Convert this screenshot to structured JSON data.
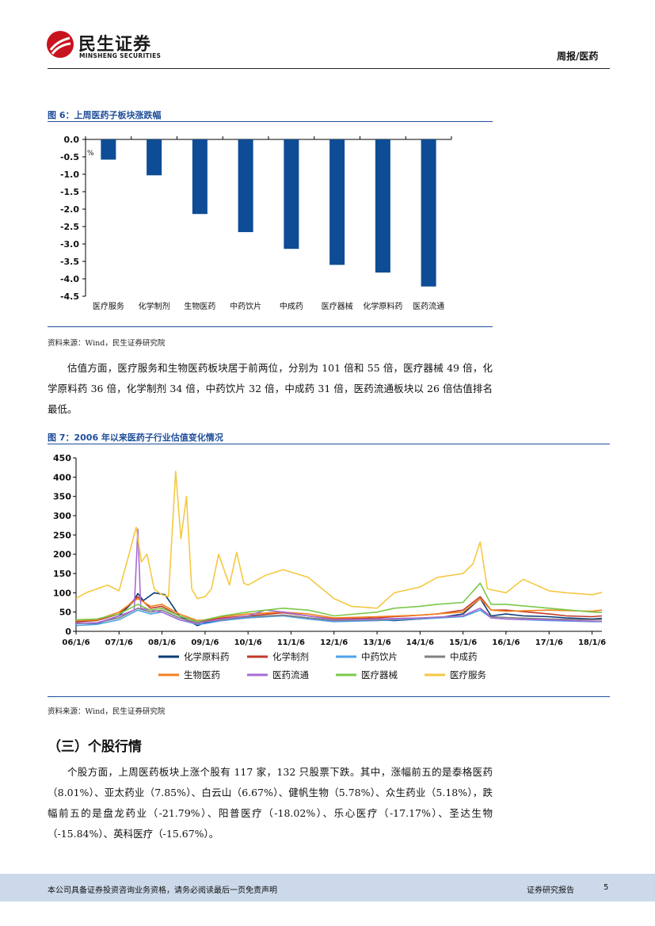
{
  "header": {
    "company_cn": "民生证券",
    "company_en": "MINSHENG SECURITIES",
    "report_type": "周报/医药"
  },
  "figure6": {
    "title": "图 6：上周医药子板块涨跌幅",
    "source": "资料来源：Wind，民生证券研究院"
  },
  "paragraph1": "估值方面，医疗服务和生物医药板块居于前两位，分别为 101 倍和 55 倍，医疗器械 49 倍，化学原料药 36 倍，化学制剂 34 倍，中药饮片 32 倍，中成药 31 倍，医药流通板块以 26 倍估值排名最低。",
  "figure7": {
    "title": "图 7：2006 年以来医药子行业估值变化情况",
    "source": "资料来源：Wind，民生证券研究院"
  },
  "section_heading": "（三）个股行情",
  "paragraph2": "个股方面，上周医药板块上涨个股有 117 家，132 只股票下跌。其中，涨幅前五的是泰格医药（8.01%）、亚太药业（7.85%）、白云山（6.67%）、健帆生物（5.78%）、众生药业（5.18%），跌幅前五的是盘龙药业（-21.79%）、阳普医疗（-18.02%）、乐心医疗（-17.17%）、圣达生物（-15.84%）、英科医疗（-15.67%）。",
  "footer": {
    "disclaimer": "本公司具备证券投资咨询业务资格，请务必阅读最后一页免责声明",
    "label": "证券研究报告",
    "page": "5"
  },
  "colors": {
    "brand_red": "#c8141e",
    "figure_blue": "#1f4e9a",
    "bar_blue": "#0e4c95",
    "footer_bg": "#cbd9ea"
  },
  "chart_data": [
    {
      "type": "bar",
      "unit": "%",
      "categories": [
        "医疗服务",
        "化学制剂",
        "生物医药",
        "中药饮片",
        "中成药",
        "医疗器械",
        "化学原料药",
        "医药流通"
      ],
      "values": [
        -0.58,
        -1.03,
        -2.14,
        -2.66,
        -3.14,
        -3.6,
        -3.82,
        -4.22
      ],
      "ylim": [
        -4.5,
        0.0
      ],
      "yticks": [
        "0.0",
        "-0.5",
        "-1.0",
        "-1.5",
        "-2.0",
        "-2.5",
        "-3.0",
        "-3.5",
        "-4.0",
        "-4.5"
      ],
      "bar_color": "#0e4c95"
    },
    {
      "type": "line",
      "x_start": "2006-01-06",
      "x_end": "2018-03-31",
      "xticks": [
        "06/1/6",
        "07/1/6",
        "08/1/6",
        "09/1/6",
        "10/1/6",
        "11/1/6",
        "12/1/6",
        "13/1/6",
        "14/1/6",
        "15/1/6",
        "16/1/6",
        "17/1/6",
        "18/1/6"
      ],
      "yticks": [
        "0",
        "50",
        "100",
        "150",
        "200",
        "250",
        "300",
        "350",
        "400",
        "450"
      ],
      "ylim": [
        0,
        450
      ],
      "series": [
        {
          "name": "化学原料药",
          "color": "#0b3c78",
          "points": [
            [
              "2006-01-06",
              22
            ],
            [
              "2006-07-01",
              20
            ],
            [
              "2007-01-06",
              40
            ],
            [
              "2007-05-01",
              75
            ],
            [
              "2007-06-15",
              98
            ],
            [
              "2007-08-01",
              80
            ],
            [
              "2007-11-01",
              100
            ],
            [
              "2008-02-01",
              95
            ],
            [
              "2008-06-01",
              40
            ],
            [
              "2008-11-01",
              15
            ],
            [
              "2009-01-06",
              22
            ],
            [
              "2009-06-01",
              30
            ],
            [
              "2010-01-06",
              35
            ],
            [
              "2010-06-01",
              38
            ],
            [
              "2010-11-01",
              42
            ],
            [
              "2011-06-01",
              35
            ],
            [
              "2012-01-06",
              28
            ],
            [
              "2012-06-01",
              30
            ],
            [
              "2013-01-06",
              30
            ],
            [
              "2013-06-01",
              28
            ],
            [
              "2014-01-06",
              32
            ],
            [
              "2014-06-01",
              35
            ],
            [
              "2015-01-06",
              45
            ],
            [
              "2015-06-01",
              85
            ],
            [
              "2015-09-01",
              40
            ],
            [
              "2016-01-06",
              45
            ],
            [
              "2016-06-01",
              40
            ],
            [
              "2017-01-06",
              38
            ],
            [
              "2017-06-01",
              35
            ],
            [
              "2018-01-06",
              32
            ],
            [
              "2018-03-31",
              34
            ]
          ]
        },
        {
          "name": "化学制剂",
          "color": "#c0392b",
          "points": [
            [
              "2006-01-06",
              25
            ],
            [
              "2006-07-01",
              28
            ],
            [
              "2007-01-06",
              45
            ],
            [
              "2007-06-15",
              90
            ],
            [
              "2007-10-01",
              60
            ],
            [
              "2008-01-06",
              65
            ],
            [
              "2008-06-01",
              40
            ],
            [
              "2008-11-01",
              25
            ],
            [
              "2009-01-06",
              28
            ],
            [
              "2009-06-01",
              35
            ],
            [
              "2010-01-06",
              40
            ],
            [
              "2010-11-01",
              48
            ],
            [
              "2011-06-01",
              40
            ],
            [
              "2012-01-06",
              32
            ],
            [
              "2013-01-06",
              35
            ],
            [
              "2013-06-01",
              38
            ],
            [
              "2014-01-06",
              42
            ],
            [
              "2014-06-01",
              45
            ],
            [
              "2015-01-06",
              55
            ],
            [
              "2015-06-01",
              90
            ],
            [
              "2015-09-01",
              55
            ],
            [
              "2016-01-06",
              55
            ],
            [
              "2017-01-06",
              45
            ],
            [
              "2017-06-01",
              40
            ],
            [
              "2018-01-06",
              38
            ],
            [
              "2018-03-31",
              40
            ]
          ]
        },
        {
          "name": "中药饮片",
          "color": "#4da3ea",
          "points": [
            [
              "2006-01-06",
              15
            ],
            [
              "2006-07-01",
              18
            ],
            [
              "2007-01-06",
              30
            ],
            [
              "2007-06-15",
              55
            ],
            [
              "2007-10-01",
              45
            ],
            [
              "2008-01-06",
              50
            ],
            [
              "2008-06-01",
              30
            ],
            [
              "2008-11-01",
              18
            ],
            [
              "2009-01-06",
              20
            ],
            [
              "2009-06-01",
              28
            ],
            [
              "2010-01-06",
              35
            ],
            [
              "2010-11-01",
              40
            ],
            [
              "2011-06-01",
              32
            ],
            [
              "2012-01-06",
              25
            ],
            [
              "2013-01-06",
              28
            ],
            [
              "2014-01-06",
              32
            ],
            [
              "2015-01-06",
              38
            ],
            [
              "2015-06-01",
              55
            ],
            [
              "2015-09-01",
              35
            ],
            [
              "2016-01-06",
              32
            ],
            [
              "2017-01-06",
              28
            ],
            [
              "2018-01-06",
              25
            ],
            [
              "2018-03-31",
              25
            ]
          ]
        },
        {
          "name": "中成药",
          "color": "#808080",
          "points": [
            [
              "2006-01-06",
              20
            ],
            [
              "2006-07-01",
              22
            ],
            [
              "2007-01-06",
              35
            ],
            [
              "2007-06-15",
              60
            ],
            [
              "2007-10-01",
              50
            ],
            [
              "2008-01-06",
              55
            ],
            [
              "2008-06-01",
              35
            ],
            [
              "2008-11-01",
              22
            ],
            [
              "2009-01-06",
              25
            ],
            [
              "2009-06-01",
              30
            ],
            [
              "2010-01-06",
              38
            ],
            [
              "2010-11-01",
              42
            ],
            [
              "2011-06-01",
              35
            ],
            [
              "2012-01-06",
              28
            ],
            [
              "2013-01-06",
              30
            ],
            [
              "2014-01-06",
              34
            ],
            [
              "2015-01-06",
              40
            ],
            [
              "2015-06-01",
              60
            ],
            [
              "2015-09-01",
              38
            ],
            [
              "2016-01-06",
              36
            ],
            [
              "2017-01-06",
              32
            ],
            [
              "2018-01-06",
              30
            ],
            [
              "2018-03-31",
              31
            ]
          ]
        },
        {
          "name": "生物医药",
          "color": "#f0821e",
          "points": [
            [
              "2006-01-06",
              28
            ],
            [
              "2006-07-01",
              30
            ],
            [
              "2007-01-06",
              50
            ],
            [
              "2007-06-15",
              85
            ],
            [
              "2007-10-01",
              65
            ],
            [
              "2008-01-06",
              70
            ],
            [
              "2008-06-01",
              45
            ],
            [
              "2008-11-01",
              28
            ],
            [
              "2009-01-06",
              30
            ],
            [
              "2009-06-01",
              38
            ],
            [
              "2010-01-06",
              45
            ],
            [
              "2010-11-01",
              50
            ],
            [
              "2011-06-01",
              45
            ],
            [
              "2012-01-06",
              35
            ],
            [
              "2013-01-06",
              38
            ],
            [
              "2014-01-06",
              42
            ],
            [
              "2015-01-06",
              50
            ],
            [
              "2015-06-01",
              85
            ],
            [
              "2015-09-01",
              55
            ],
            [
              "2016-01-06",
              52
            ],
            [
              "2017-01-06",
              55
            ],
            [
              "2018-01-06",
              52
            ],
            [
              "2018-03-31",
              55
            ]
          ]
        },
        {
          "name": "医药流通",
          "color": "#a66bd6",
          "points": [
            [
              "2006-01-06",
              22
            ],
            [
              "2006-07-01",
              22
            ],
            [
              "2007-01-06",
              40
            ],
            [
              "2007-05-15",
              55
            ],
            [
              "2007-06-15",
              265
            ],
            [
              "2007-07-10",
              60
            ],
            [
              "2007-10-01",
              55
            ],
            [
              "2008-01-06",
              50
            ],
            [
              "2008-06-01",
              30
            ],
            [
              "2008-11-01",
              20
            ],
            [
              "2009-01-06",
              25
            ],
            [
              "2009-06-01",
              32
            ],
            [
              "2010-01-06",
              40
            ],
            [
              "2010-06-01",
              55
            ],
            [
              "2010-11-01",
              50
            ],
            [
              "2011-06-01",
              40
            ],
            [
              "2012-01-06",
              30
            ],
            [
              "2013-01-06",
              32
            ],
            [
              "2014-01-06",
              35
            ],
            [
              "2015-01-06",
              40
            ],
            [
              "2015-06-01",
              60
            ],
            [
              "2015-09-01",
              35
            ],
            [
              "2016-01-06",
              32
            ],
            [
              "2017-01-06",
              30
            ],
            [
              "2018-01-06",
              26
            ],
            [
              "2018-03-31",
              26
            ]
          ]
        },
        {
          "name": "医疗器械",
          "color": "#7bc94a",
          "points": [
            [
              "2006-01-06",
              30
            ],
            [
              "2006-07-01",
              32
            ],
            [
              "2007-01-06",
              45
            ],
            [
              "2007-06-15",
              70
            ],
            [
              "2007-10-01",
              55
            ],
            [
              "2008-01-06",
              60
            ],
            [
              "2008-06-01",
              40
            ],
            [
              "2008-11-01",
              25
            ],
            [
              "2009-01-06",
              30
            ],
            [
              "2009-06-01",
              40
            ],
            [
              "2010-01-06",
              50
            ],
            [
              "2010-11-01",
              60
            ],
            [
              "2011-06-01",
              55
            ],
            [
              "2012-01-06",
              40
            ],
            [
              "2013-01-06",
              50
            ],
            [
              "2013-06-01",
              60
            ],
            [
              "2014-01-06",
              65
            ],
            [
              "2014-06-01",
              70
            ],
            [
              "2015-01-06",
              75
            ],
            [
              "2015-06-01",
              125
            ],
            [
              "2015-09-01",
              70
            ],
            [
              "2016-01-06",
              70
            ],
            [
              "2017-01-06",
              60
            ],
            [
              "2018-01-06",
              50
            ],
            [
              "2018-03-31",
              49
            ]
          ]
        },
        {
          "name": "医疗服务",
          "color": "#f5c842",
          "points": [
            [
              "2006-01-06",
              85
            ],
            [
              "2006-04-01",
              100
            ],
            [
              "2006-07-01",
              110
            ],
            [
              "2006-10-01",
              120
            ],
            [
              "2007-01-06",
              105
            ],
            [
              "2007-04-01",
              200
            ],
            [
              "2007-06-01",
              270
            ],
            [
              "2007-07-15",
              180
            ],
            [
              "2007-09-01",
              200
            ],
            [
              "2007-11-01",
              110
            ],
            [
              "2008-01-06",
              95
            ],
            [
              "2008-03-01",
              90
            ],
            [
              "2008-05-01",
              415
            ],
            [
              "2008-06-15",
              240
            ],
            [
              "2008-08-01",
              350
            ],
            [
              "2008-09-15",
              110
            ],
            [
              "2008-11-01",
              85
            ],
            [
              "2009-01-06",
              90
            ],
            [
              "2009-03-01",
              110
            ],
            [
              "2009-05-01",
              200
            ],
            [
              "2009-08-01",
              120
            ],
            [
              "2009-10-01",
              205
            ],
            [
              "2009-12-01",
              125
            ],
            [
              "2010-01-06",
              120
            ],
            [
              "2010-06-01",
              145
            ],
            [
              "2010-11-01",
              160
            ],
            [
              "2011-06-01",
              140
            ],
            [
              "2012-01-06",
              85
            ],
            [
              "2012-06-01",
              65
            ],
            [
              "2013-01-06",
              60
            ],
            [
              "2013-06-01",
              100
            ],
            [
              "2014-01-06",
              115
            ],
            [
              "2014-06-01",
              140
            ],
            [
              "2015-01-06",
              150
            ],
            [
              "2015-04-01",
              175
            ],
            [
              "2015-06-01",
              232
            ],
            [
              "2015-08-01",
              110
            ],
            [
              "2016-01-06",
              100
            ],
            [
              "2016-06-01",
              135
            ],
            [
              "2017-01-06",
              105
            ],
            [
              "2017-06-01",
              100
            ],
            [
              "2018-01-06",
              95
            ],
            [
              "2018-03-31",
              101
            ]
          ]
        }
      ]
    }
  ]
}
